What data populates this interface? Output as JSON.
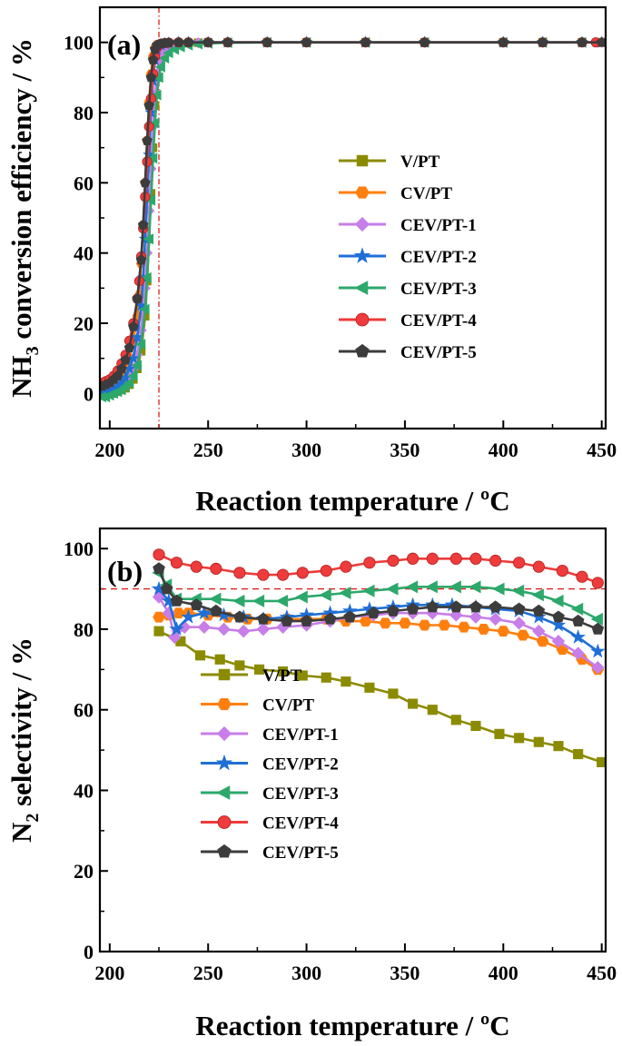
{
  "colors": {
    "V/PT": "#8b8b00",
    "CV/PT": "#ff7f0e",
    "CEV/PT-1": "#c77ee8",
    "CEV/PT-2": "#1f6fd6",
    "CEV/PT-3": "#2ca86b",
    "CEV/PT-4": "#ee3b3b",
    "CEV/PT-5": "#3c3c3c"
  },
  "markers": {
    "V/PT": "square",
    "CV/PT": "hexagon",
    "CEV/PT-1": "diamond",
    "CEV/PT-2": "star",
    "CEV/PT-3": "triangle-left",
    "CEV/PT-4": "circle",
    "CEV/PT-5": "pentagon"
  },
  "chart_data": [
    {
      "type": "line",
      "panel_label": "(a)",
      "xlabel": "Reaction temperature / ºC",
      "ylabel_main": "NH",
      "ylabel_sub": "3",
      "ylabel_rest": " conversion efficiency / %",
      "xlim": [
        195,
        452
      ],
      "ylim": [
        -10,
        110
      ],
      "xticks": [
        200,
        250,
        300,
        350,
        400,
        450
      ],
      "yticks": [
        0,
        20,
        40,
        60,
        80,
        100
      ],
      "legend_position": "center-right",
      "reference_line": {
        "axis": "x",
        "value": 225,
        "style": "dash-dot"
      },
      "series": [
        {
          "name": "V/PT",
          "x": [
            196,
            198,
            200,
            202,
            204,
            206,
            208,
            210,
            212,
            214,
            216,
            218,
            219,
            220,
            221,
            222,
            223,
            224,
            225,
            226,
            228,
            230,
            232,
            235,
            240,
            245,
            250,
            260,
            280,
            300,
            330,
            360,
            400,
            420,
            440,
            450
          ],
          "y": [
            0,
            0,
            0,
            0,
            0.5,
            1,
            1.5,
            2.5,
            4,
            7,
            12,
            22,
            32,
            44,
            57,
            70,
            82,
            90,
            95,
            97,
            98.5,
            99.2,
            99.5,
            99.7,
            99.8,
            99.9,
            100,
            100,
            100,
            100,
            100,
            100,
            100,
            100,
            100,
            100
          ]
        },
        {
          "name": "CV/PT",
          "x": [
            196,
            198,
            200,
            202,
            204,
            206,
            208,
            210,
            212,
            214,
            215,
            216,
            217,
            218,
            219,
            220,
            221,
            222,
            223,
            224,
            226,
            228,
            230,
            235,
            240,
            250,
            260,
            280,
            300,
            330,
            360,
            400,
            420,
            440,
            450
          ],
          "y": [
            1,
            1.5,
            2,
            2.5,
            3.5,
            5,
            7,
            10,
            15,
            22,
            28,
            37,
            48,
            60,
            72,
            83,
            91,
            96,
            98.5,
            99.3,
            99.6,
            99.8,
            99.9,
            100,
            100,
            100,
            100,
            100,
            100,
            100,
            100,
            100,
            100,
            100,
            100
          ]
        },
        {
          "name": "CEV/PT-1",
          "x": [
            196,
            198,
            200,
            202,
            204,
            206,
            208,
            210,
            212,
            214,
            216,
            218,
            219,
            220,
            221,
            222,
            223,
            224,
            225,
            226,
            228,
            230,
            232,
            235,
            240,
            245,
            250,
            260,
            280,
            300,
            330,
            360,
            400,
            420,
            440,
            450
          ],
          "y": [
            0,
            0,
            0.5,
            1,
            1.5,
            2,
            3,
            4.5,
            7,
            11,
            18,
            30,
            40,
            52,
            64,
            76,
            85,
            91,
            95,
            97,
            98.2,
            99,
            99.4,
            99.6,
            99.8,
            99.9,
            100,
            100,
            100,
            100,
            100,
            100,
            100,
            100,
            100,
            100
          ]
        },
        {
          "name": "CEV/PT-2",
          "x": [
            196,
            198,
            200,
            202,
            204,
            206,
            208,
            210,
            212,
            214,
            216,
            217,
            218,
            219,
            220,
            221,
            222,
            223,
            224,
            226,
            228,
            230,
            235,
            240,
            250,
            260,
            280,
            300,
            330,
            360,
            400,
            420,
            440,
            450
          ],
          "y": [
            0,
            0,
            0.5,
            1,
            2,
            3,
            4.5,
            7,
            10,
            16,
            25,
            33,
            44,
            56,
            68,
            80,
            89,
            95,
            98,
            99.2,
            99.6,
            99.8,
            100,
            100,
            100,
            100,
            100,
            100,
            100,
            100,
            100,
            100,
            100,
            100
          ]
        },
        {
          "name": "CEV/PT-3",
          "x": [
            196,
            198,
            200,
            202,
            204,
            206,
            208,
            210,
            212,
            214,
            216,
            218,
            219,
            220,
            221,
            222,
            223,
            224,
            225,
            226,
            228,
            230,
            233,
            236,
            240,
            245,
            250,
            260,
            280,
            300,
            330,
            360,
            400,
            420,
            440,
            450
          ],
          "y": [
            -1,
            -1,
            -0.5,
            0,
            0.5,
            1,
            2,
            3,
            5,
            8,
            14,
            24,
            33,
            44,
            55,
            67,
            77,
            85,
            90,
            93,
            95.5,
            97,
            98,
            98.7,
            99.2,
            99.5,
            99.7,
            99.9,
            100,
            100,
            100,
            100,
            100,
            100,
            100,
            100
          ]
        },
        {
          "name": "CEV/PT-4",
          "x": [
            196,
            198,
            200,
            202,
            204,
            206,
            208,
            210,
            212,
            214,
            215,
            216,
            217,
            218,
            219,
            220,
            221,
            222,
            223,
            224,
            225,
            226,
            228,
            230,
            235,
            240,
            250,
            260,
            280,
            300,
            330,
            360,
            400,
            420,
            440,
            447
          ],
          "y": [
            3,
            3.5,
            4,
            5,
            6.5,
            8.5,
            11,
            15,
            20,
            27,
            32,
            39,
            47,
            56,
            66,
            76,
            84,
            91,
            96,
            98.5,
            99.3,
            99.6,
            99.8,
            99.9,
            100,
            100,
            100,
            100,
            100,
            100,
            100,
            100,
            100,
            100,
            100,
            100
          ]
        },
        {
          "name": "CEV/PT-5",
          "x": [
            196,
            198,
            200,
            202,
            204,
            206,
            208,
            210,
            212,
            214,
            216,
            217,
            218,
            219,
            220,
            221,
            222,
            223,
            224,
            226,
            228,
            230,
            235,
            240,
            250,
            260,
            280,
            300,
            330,
            360,
            400,
            420,
            440,
            450
          ],
          "y": [
            2,
            2.5,
            3,
            4,
            5,
            7,
            9.5,
            13,
            19,
            27,
            38,
            48,
            60,
            72,
            82,
            90,
            95,
            98,
            99.2,
            99.6,
            99.8,
            99.9,
            100,
            100,
            100,
            100,
            100,
            100,
            100,
            100,
            100,
            100,
            100,
            100
          ]
        }
      ]
    },
    {
      "type": "line",
      "panel_label": "(b)",
      "xlabel": "Reaction temperature / ºC",
      "ylabel_main": "N",
      "ylabel_sub": "2",
      "ylabel_rest": " selectivity / %",
      "xlim": [
        195,
        452
      ],
      "ylim": [
        0,
        105
      ],
      "xticks": [
        200,
        250,
        300,
        350,
        400,
        450
      ],
      "yticks": [
        0,
        20,
        40,
        60,
        80,
        100
      ],
      "legend_position": "center-left",
      "reference_line": {
        "axis": "y",
        "value": 90,
        "style": "dashed"
      },
      "series": [
        {
          "name": "V/PT",
          "x": [
            225,
            236,
            246,
            256,
            266,
            276,
            288,
            298,
            310,
            320,
            332,
            344,
            354,
            364,
            376,
            386,
            398,
            408,
            418,
            428,
            438,
            450
          ],
          "y": [
            79.5,
            77,
            73.5,
            72.5,
            71,
            70,
            69.5,
            68.5,
            68,
            67,
            65.5,
            64,
            61.5,
            60,
            57.5,
            56,
            54,
            53,
            52,
            51,
            49,
            47
          ]
        },
        {
          "name": "CV/PT",
          "x": [
            225,
            230,
            235,
            240,
            250,
            260,
            270,
            280,
            290,
            300,
            310,
            320,
            330,
            340,
            350,
            360,
            370,
            380,
            390,
            400,
            410,
            420,
            430,
            440,
            448
          ],
          "y": [
            83,
            83.5,
            84,
            84,
            83.5,
            83,
            82.5,
            82.5,
            82.5,
            82.5,
            82.5,
            82,
            82,
            81.5,
            81.5,
            81,
            81,
            80.5,
            80,
            79.5,
            78.5,
            77,
            75,
            72.5,
            70
          ]
        },
        {
          "name": "CEV/PT-1",
          "x": [
            225,
            230,
            233,
            238,
            248,
            258,
            268,
            278,
            288,
            300,
            312,
            322,
            334,
            344,
            354,
            364,
            376,
            386,
            396,
            408,
            418,
            428,
            438,
            448
          ],
          "y": [
            88,
            84,
            78,
            80.5,
            80.5,
            80,
            79.5,
            80,
            80.5,
            81,
            82,
            83,
            83.5,
            84,
            84,
            84,
            83.5,
            83,
            82.5,
            81.5,
            79.5,
            77,
            74,
            70.5
          ]
        },
        {
          "name": "CEV/PT-2",
          "x": [
            225,
            230,
            234,
            240,
            248,
            258,
            268,
            278,
            290,
            300,
            312,
            322,
            332,
            344,
            354,
            364,
            374,
            386,
            396,
            408,
            418,
            428,
            438,
            448
          ],
          "y": [
            90,
            87,
            80,
            83,
            84,
            83.5,
            83,
            82.5,
            83,
            83.5,
            84,
            84.5,
            85,
            85.5,
            86,
            86,
            86,
            85.5,
            85,
            84.5,
            83,
            81,
            78,
            74.5
          ]
        },
        {
          "name": "CEV/PT-3",
          "x": [
            225,
            229,
            234,
            244,
            254,
            266,
            276,
            288,
            298,
            310,
            320,
            332,
            344,
            354,
            364,
            376,
            386,
            398,
            408,
            418,
            428,
            438,
            448
          ],
          "y": [
            94,
            91,
            87.5,
            87.5,
            87.5,
            87,
            87,
            87,
            88,
            88.5,
            89,
            89.5,
            90,
            90.5,
            90.5,
            90.5,
            90.5,
            90,
            89.5,
            88.5,
            87,
            85,
            82.5
          ]
        },
        {
          "name": "CEV/PT-4",
          "x": [
            225,
            234,
            244,
            254,
            266,
            278,
            288,
            298,
            310,
            320,
            332,
            344,
            354,
            364,
            376,
            386,
            396,
            408,
            418,
            430,
            440,
            448
          ],
          "y": [
            98.5,
            96.5,
            95.5,
            95,
            94,
            93.5,
            93.5,
            94,
            94.5,
            95.5,
            96.5,
            97,
            97.5,
            97.5,
            97.5,
            97.5,
            97,
            96.5,
            95.5,
            94.5,
            93,
            91.5
          ]
        },
        {
          "name": "CEV/PT-5",
          "x": [
            225,
            229,
            234,
            244,
            254,
            266,
            278,
            290,
            300,
            312,
            322,
            334,
            344,
            354,
            364,
            376,
            386,
            396,
            408,
            418,
            428,
            438,
            448
          ],
          "y": [
            95,
            90,
            87,
            86,
            84.5,
            83,
            82.5,
            82,
            82,
            82.5,
            83,
            84,
            84.5,
            85,
            85.5,
            85.5,
            85.5,
            85.5,
            85,
            84.5,
            83,
            82,
            80
          ]
        }
      ]
    }
  ]
}
